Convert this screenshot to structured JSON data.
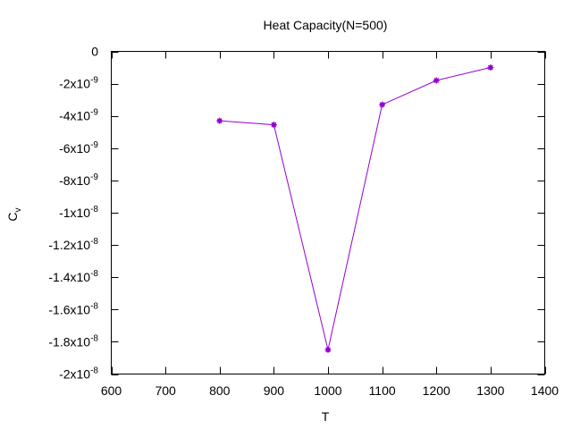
{
  "chart_data": {
    "type": "line",
    "title": "Heat Capacity(N=500)",
    "xlabel": "T",
    "ylabel_main": "C",
    "ylabel_sub": "v",
    "xlim": [
      600,
      1400
    ],
    "ylim": [
      -2e-08,
      0
    ],
    "x_ticks": [
      600,
      700,
      800,
      900,
      1000,
      1100,
      1200,
      1300,
      1400
    ],
    "x_tick_labels": [
      "600",
      "700",
      "800",
      "900",
      "1000",
      "1100",
      "1200",
      "1300",
      "1400"
    ],
    "y_ticks": [
      0,
      -2e-09,
      -4e-09,
      -6e-09,
      -8e-09,
      -1e-08,
      -1.2e-08,
      -1.4e-08,
      -1.6e-08,
      -1.8e-08,
      -2e-08
    ],
    "y_tick_labels": [
      {
        "base": "0",
        "exp": ""
      },
      {
        "base": "-2x10",
        "exp": "-9"
      },
      {
        "base": "-4x10",
        "exp": "-9"
      },
      {
        "base": "-6x10",
        "exp": "-9"
      },
      {
        "base": "-8x10",
        "exp": "-9"
      },
      {
        "base": "-1x10",
        "exp": "-8"
      },
      {
        "base": "-1.2x10",
        "exp": "-8"
      },
      {
        "base": "-1.4x10",
        "exp": "-8"
      },
      {
        "base": "-1.6x10",
        "exp": "-8"
      },
      {
        "base": "-1.8x10",
        "exp": "-8"
      },
      {
        "base": "-2x10",
        "exp": "-8"
      }
    ],
    "grid": false,
    "legend": "none",
    "series": [
      {
        "x": [
          800,
          900,
          1000,
          1100,
          1200,
          1300
        ],
        "y": [
          -4.3e-09,
          -4.55e-09,
          -1.85e-08,
          -3.3e-09,
          -1.8e-09,
          -1e-09
        ],
        "color": "#9400d3"
      }
    ]
  }
}
